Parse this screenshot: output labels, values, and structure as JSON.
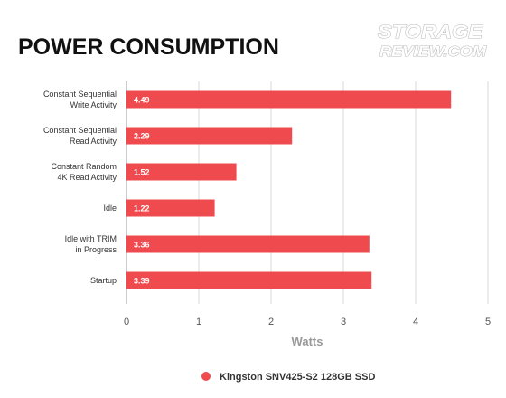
{
  "logo": {
    "line1": "STORAGE",
    "line2": "REVIEW.COM"
  },
  "chart_data": {
    "type": "bar",
    "orientation": "horizontal",
    "title": "POWER CONSUMPTION",
    "xlabel": "Watts",
    "ylabel": "",
    "categories": [
      [
        "Constant Sequential",
        "Write Activity"
      ],
      [
        "Constant Sequential",
        "Read Activity"
      ],
      [
        "Constant Random",
        "4K Read Activity"
      ],
      [
        "Idle"
      ],
      [
        "Idle with TRIM",
        "in Progress"
      ],
      [
        "Startup"
      ]
    ],
    "series": [
      {
        "name": "Kingston SNV425-S2 128GB SSD",
        "values": [
          4.49,
          2.29,
          1.52,
          1.22,
          3.36,
          3.39
        ],
        "color": "#ef4b4f"
      }
    ],
    "xlim": [
      0,
      5
    ],
    "xticks": [
      0,
      1,
      2,
      3,
      4,
      5
    ],
    "grid": true,
    "legend_position": "bottom",
    "value_labels": [
      "4.49",
      "2.29",
      "1.52",
      "1.22",
      "3.36",
      "3.39"
    ]
  }
}
